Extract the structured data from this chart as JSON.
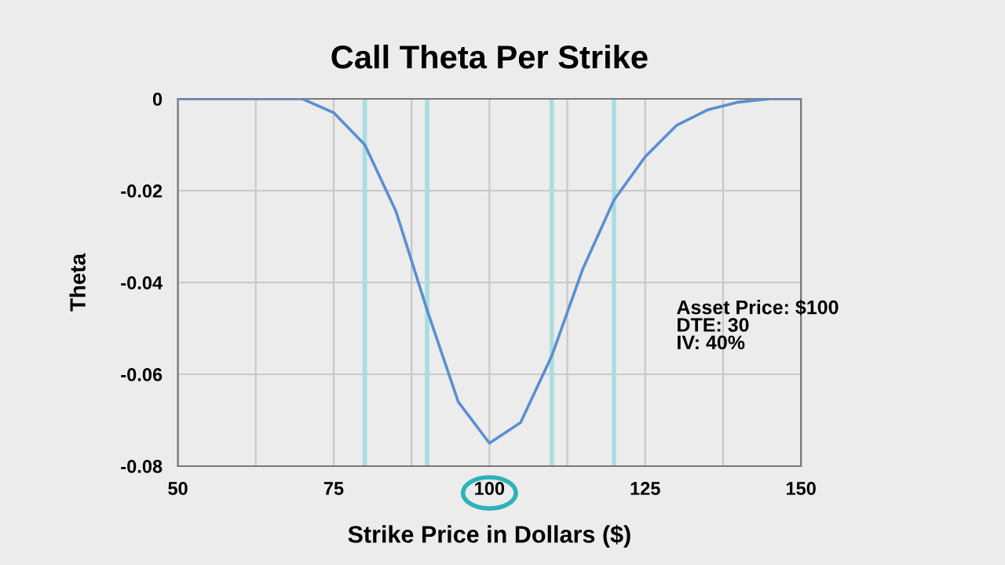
{
  "chart_data": {
    "type": "line",
    "title": "Call Theta Per Strike",
    "xlabel": "Strike Price in Dollars ($)",
    "ylabel": "Theta",
    "x": [
      50,
      55,
      60,
      65,
      70,
      75,
      80,
      85,
      90,
      95,
      100,
      105,
      110,
      115,
      120,
      125,
      130,
      135,
      140,
      145,
      150
    ],
    "series": [
      {
        "color": "#5b8fd0",
        "values": [
          0,
          0,
          0,
          0,
          0,
          -0.003,
          -0.01,
          -0.0245,
          -0.046,
          -0.066,
          -0.075,
          -0.0705,
          -0.056,
          -0.037,
          -0.022,
          -0.0126,
          -0.0058,
          -0.0024,
          -0.0007,
          0,
          0
        ]
      }
    ],
    "xlim": [
      50,
      150
    ],
    "xticks": [
      50,
      {
        "value": 62.5,
        "label": null
      },
      75,
      {
        "value": 87.5,
        "label": null
      },
      100,
      {
        "value": 112.5,
        "label": null
      },
      125,
      {
        "value": 137.5,
        "label": null
      },
      150
    ],
    "ylim": [
      -0.08,
      0
    ],
    "yticks": [
      -0.08,
      -0.06,
      -0.04,
      -0.02,
      0
    ],
    "grid": true,
    "marker": "none",
    "line_style": "solid",
    "ref_lines": [
      {
        "axis": "x",
        "value": 80,
        "color": "#a8dde0"
      },
      {
        "axis": "x",
        "value": 90,
        "color": "#a8dde0"
      },
      {
        "axis": "x",
        "value": 110,
        "color": "#a8dde0"
      },
      {
        "axis": "x",
        "value": 120,
        "color": "#a8dde0"
      }
    ],
    "annotations": [
      "Asset Price: $100\nDTE: 30\nIV: 40%"
    ]
  }
}
